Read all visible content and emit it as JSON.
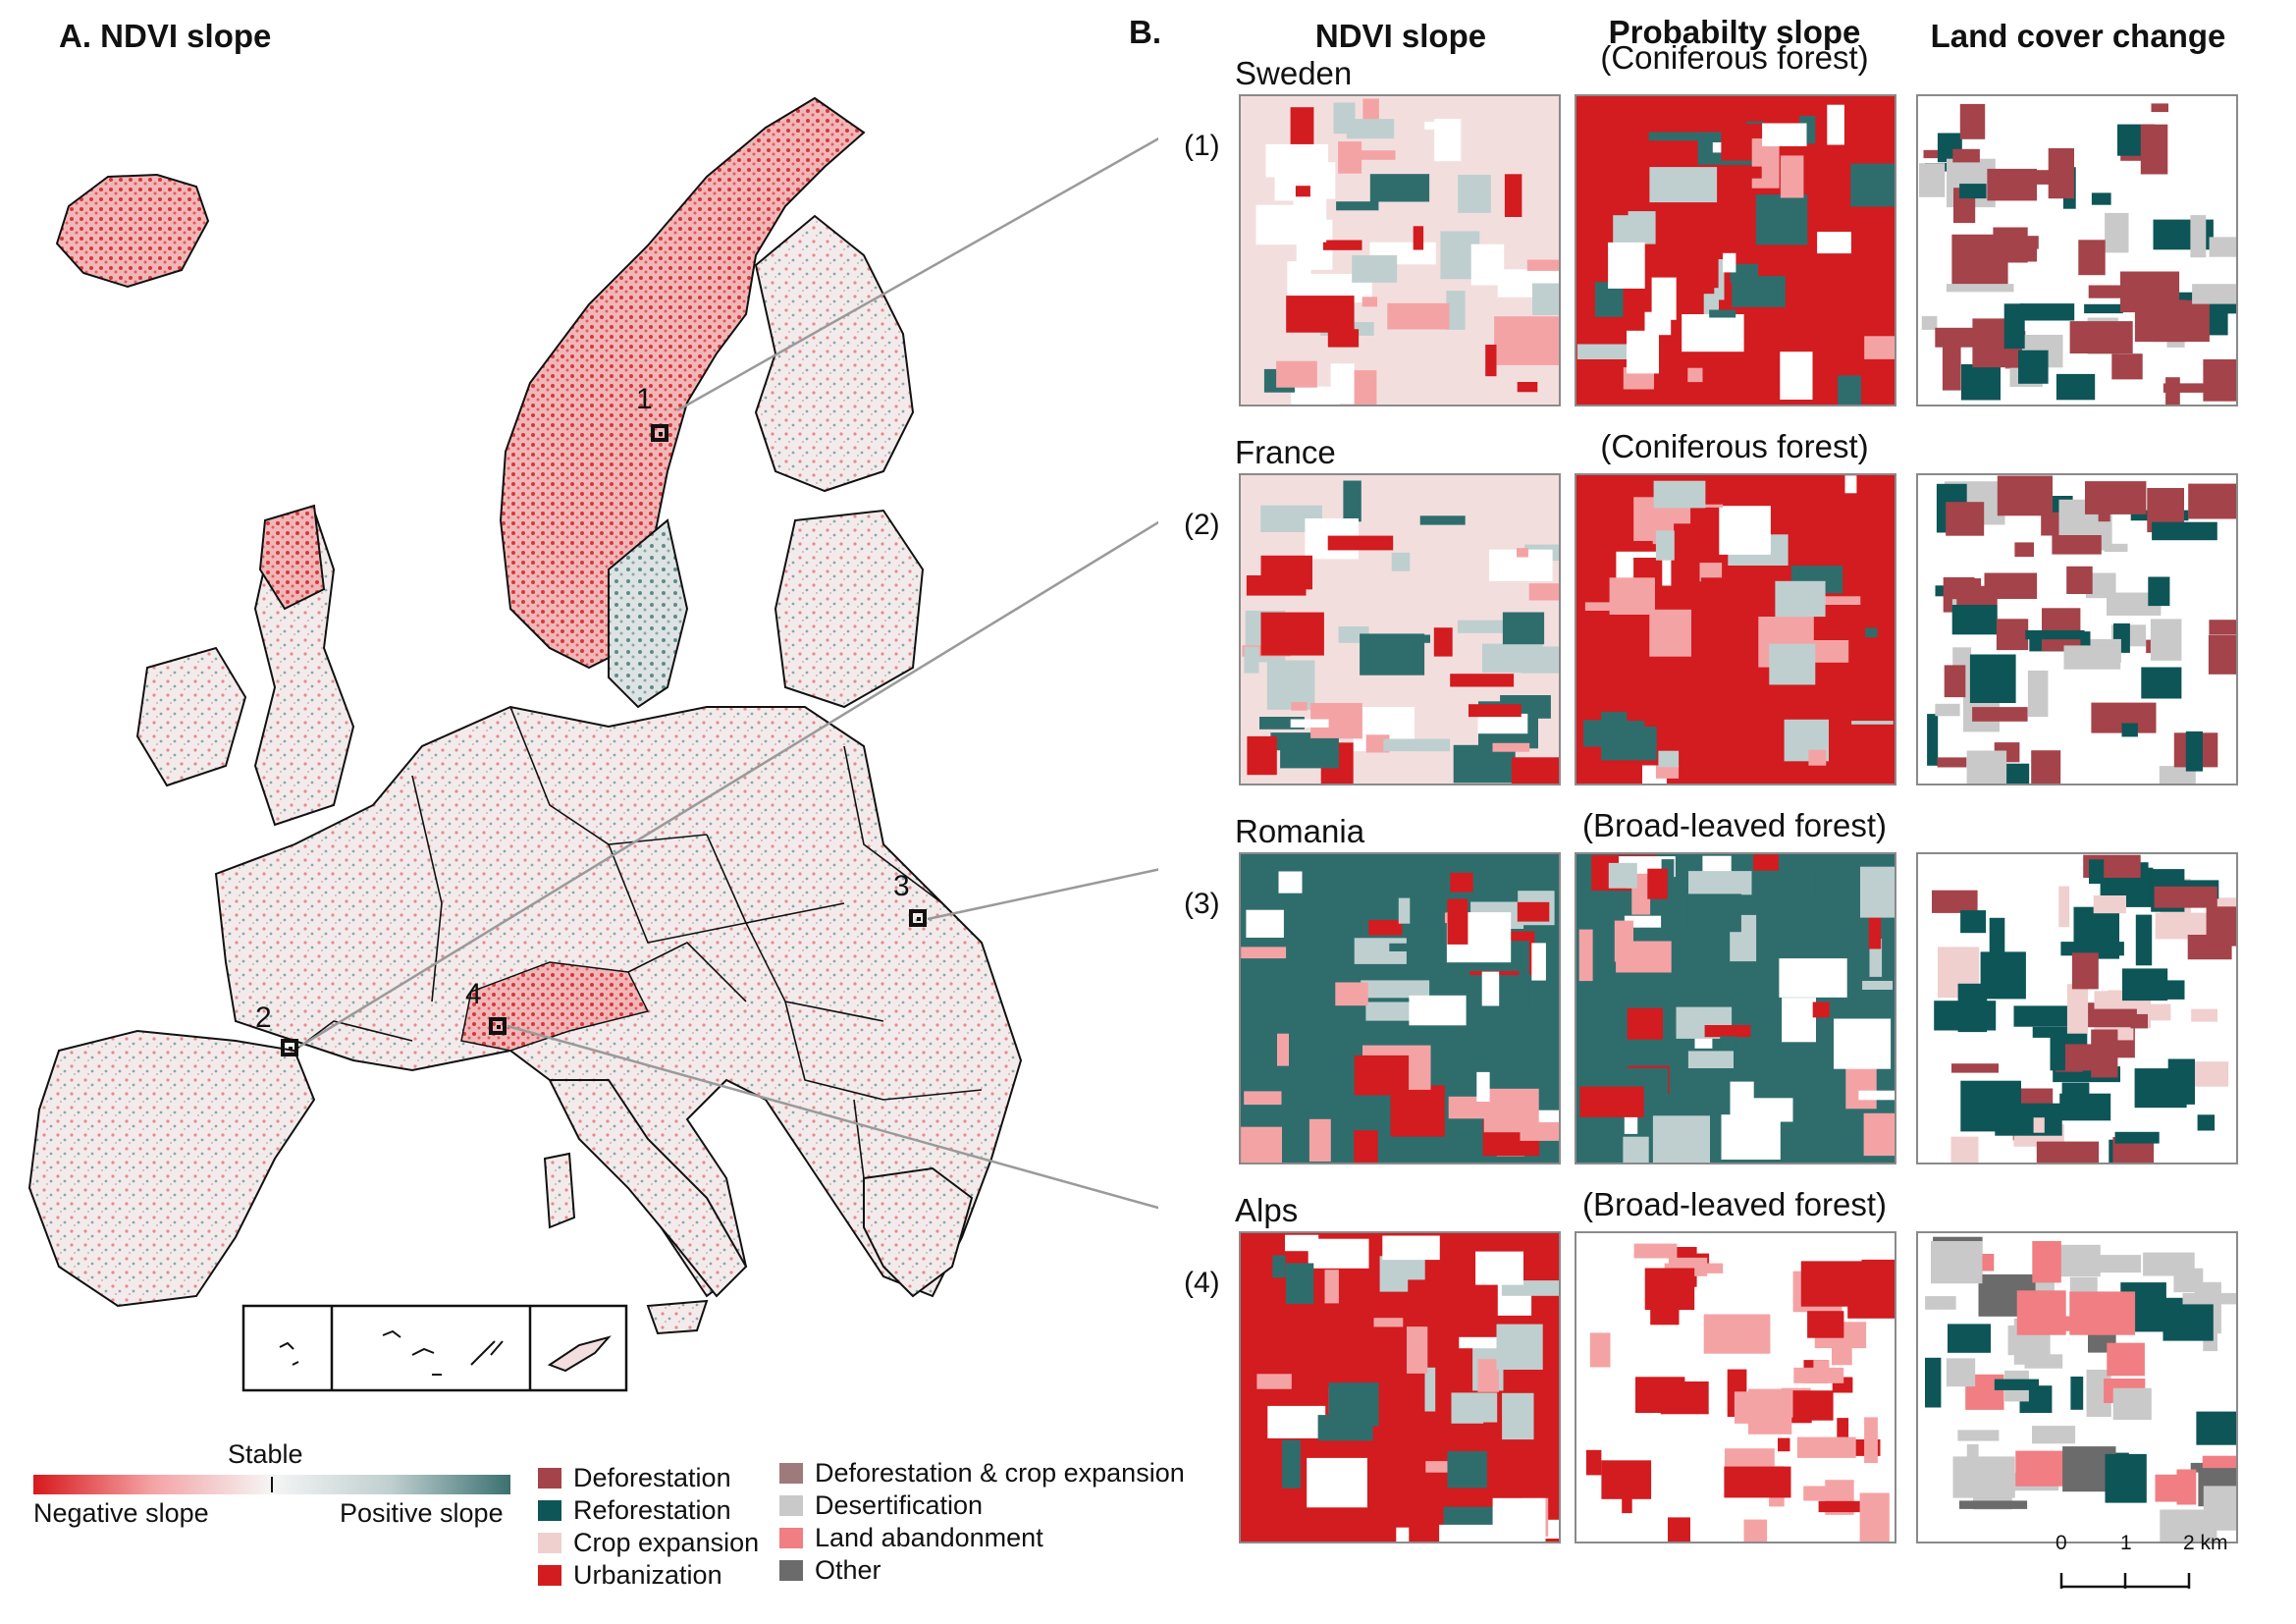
{
  "panel_a": {
    "title": "A. NDVI slope",
    "site_markers": [
      "1",
      "2",
      "3",
      "4"
    ]
  },
  "panel_b": {
    "label": "B.",
    "columns": [
      "NDVI slope",
      "Probabilty slope",
      "Land cover change"
    ],
    "rows": [
      {
        "number": "(1)",
        "region": "Sweden",
        "forest": "(Coniferous forest)"
      },
      {
        "number": "(2)",
        "region": "France",
        "forest": "(Coniferous forest)"
      },
      {
        "number": "(3)",
        "region": "Romania",
        "forest": "(Broad-leaved forest)"
      },
      {
        "number": "(4)",
        "region": "Alps",
        "forest": "(Broad-leaved forest)"
      }
    ]
  },
  "colorbar": {
    "stable_label": "Stable",
    "negative_label": "Negative slope",
    "positive_label": "Positive slope",
    "colors": [
      "#d7191c",
      "#f4a3a5",
      "#f5f5f5",
      "#bfcfcf",
      "#3b7070"
    ]
  },
  "legend": {
    "items": [
      {
        "label": "Deforestation",
        "color": "#a4434a"
      },
      {
        "label": "Reforestation",
        "color": "#0e5557"
      },
      {
        "label": "Crop expansion",
        "color": "#f0cfcf"
      },
      {
        "label": "Urbanization",
        "color": "#d21c20"
      },
      {
        "label": "Deforestation & crop expansion",
        "color": "#9e7a7c"
      },
      {
        "label": "Desertification",
        "color": "#c9c9c9"
      },
      {
        "label": "Land abandonment",
        "color": "#f07e82"
      },
      {
        "label": "Other",
        "color": "#6b6b6b"
      }
    ]
  },
  "scalebar": {
    "ticks": [
      "0",
      "1",
      "2 km"
    ]
  },
  "colors": {
    "negative": "#d21c20",
    "positive": "#2f6d6d",
    "land": "#f2ecec"
  }
}
